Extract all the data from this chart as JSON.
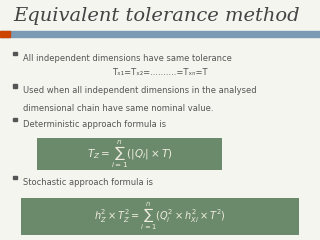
{
  "title": "Equivalent tolerance method",
  "title_fontsize": 14,
  "title_color": "#444444",
  "background_color": "#f5f5f0",
  "header_bar_color": "#7b9bb5",
  "accent_rect_color": "#cc4400",
  "formula_box_color": "#6b8a6b",
  "formula_text_color": "#f0ede0",
  "bullet_color": "#555555",
  "bullet1": "All independent dimensions have same tolerance",
  "bullet1_sub": "Tₓ₁=Tₓ₂=..........=Tₓₙ=T",
  "bullet2_line1": "Used when all independent dimensions in the analysed",
  "bullet2_line2": "dimensional chain have same nominal value.",
  "bullet3": "Deterministic approach formula is",
  "formula_det": "$T_Z = \\sum_{i=1}^{n}(|Q_i| \\times T)$",
  "bullet4": "Stochastic approach formula is",
  "formula_stoch": "$h_Z^2 \\times T_Z^2 = \\sum_{i=1}^{n}(Q_i^2 \\times h_{Xi}^2 \\times T^2)$",
  "figsize": [
    3.2,
    2.4
  ],
  "dpi": 100
}
